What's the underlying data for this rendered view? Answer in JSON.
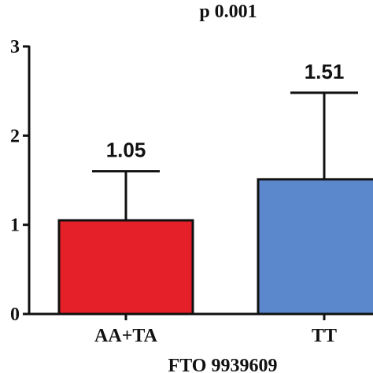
{
  "chart_data": {
    "type": "bar",
    "title": "p 0.001",
    "xlabel": "FTO 9939609",
    "ylabel": "",
    "categories": [
      "AA+TA",
      "TT"
    ],
    "values": [
      1.05,
      1.51
    ],
    "error_upper": [
      1.6,
      2.48
    ],
    "data_labels": [
      "1.05",
      "1.51"
    ],
    "bar_colors": [
      "#e62028",
      "#5b87cc"
    ],
    "ylim": [
      0,
      3
    ],
    "yticks": [
      0,
      1,
      2,
      3
    ],
    "ytick_labels": [
      "0",
      "1",
      "2",
      "3"
    ],
    "grid": false,
    "legend": "none"
  }
}
